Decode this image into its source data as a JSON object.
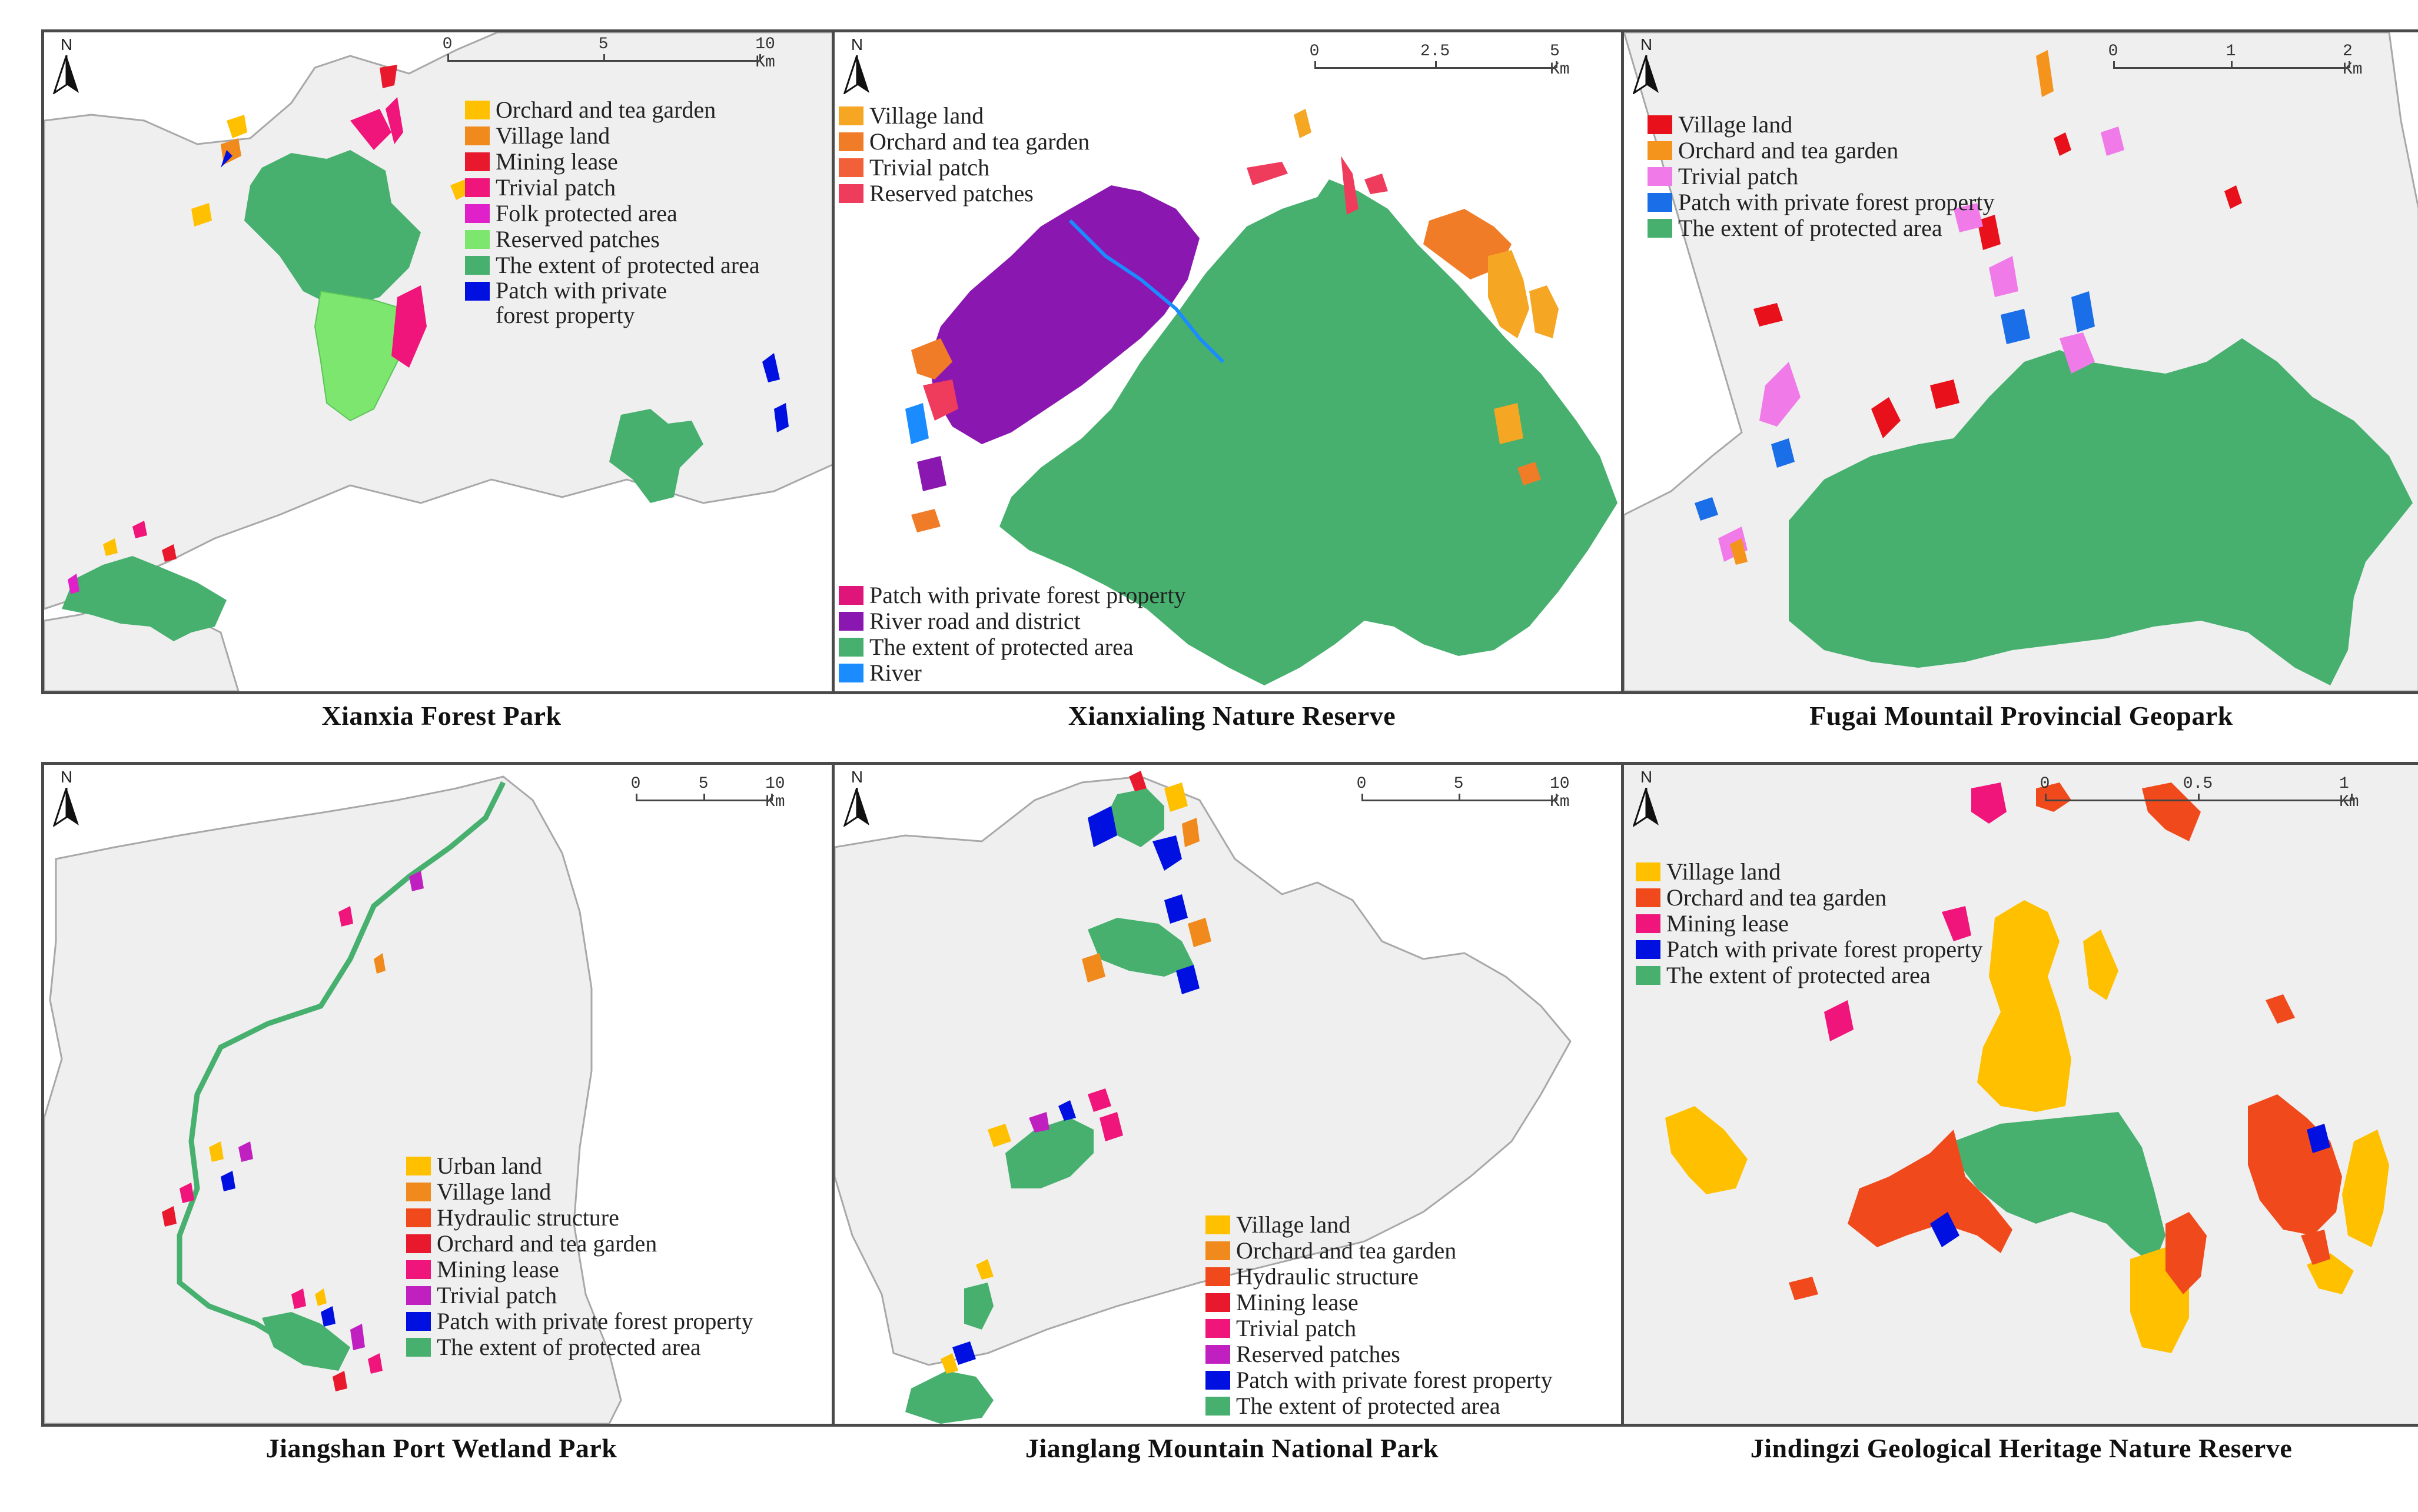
{
  "colors": {
    "background_land": "#efefef",
    "protected_area": "#47b06f",
    "reserved_patches_light": "#7de66e",
    "boundary": "#9a9a9a"
  },
  "north_label": "N",
  "panels": [
    {
      "caption": "Xianxia Forest Park",
      "scale": {
        "labels": [
          "0",
          "5",
          "10 Km"
        ]
      },
      "legend": [
        {
          "label": "Orchard and tea garden",
          "color": "#ffc000"
        },
        {
          "label": "Village land",
          "color": "#f08a1c"
        },
        {
          "label": "Mining lease",
          "color": "#e8192c"
        },
        {
          "label": "Trivial patch",
          "color": "#f0157a"
        },
        {
          "label": "Folk protected area",
          "color": "#e020c8"
        },
        {
          "label": "Reserved patches",
          "color": "#7de66e"
        },
        {
          "label": "The extent of protected area",
          "color": "#47b06f"
        },
        {
          "label": "Patch with private forest property",
          "color": "#0010e0"
        }
      ]
    },
    {
      "caption": "Xianxialing Nature Reserve",
      "scale": {
        "labels": [
          "0",
          "2.5",
          "5 Km"
        ]
      },
      "legend": [
        {
          "label": "Village land",
          "color": "#f5a623"
        },
        {
          "label": "Orchard and tea garden",
          "color": "#f07c28"
        },
        {
          "label": "Trivial patch",
          "color": "#f2603a"
        },
        {
          "label": "Reserved patches",
          "color": "#f03c5c"
        }
      ],
      "legend2": [
        {
          "label": "Patch with private forest property",
          "color": "#e0157a"
        },
        {
          "label": "River road and district",
          "color": "#8a18b0"
        },
        {
          "label": "The extent of protected area",
          "color": "#47b06f"
        },
        {
          "label": "River",
          "color": "#1a8cff"
        }
      ]
    },
    {
      "caption": "Fugai Mountail Provincial Geopark",
      "scale": {
        "labels": [
          "0",
          "1",
          "2 Km"
        ]
      },
      "legend": [
        {
          "label": "Village land",
          "color": "#e8101a"
        },
        {
          "label": "Orchard and tea garden",
          "color": "#f5941c"
        },
        {
          "label": "Trivial patch",
          "color": "#f07ae8"
        },
        {
          "label": "Patch with private forest property",
          "color": "#1a6ee8"
        },
        {
          "label": "The extent of protected area",
          "color": "#47b06f"
        }
      ]
    },
    {
      "caption": "Jiangshan Port Wetland Park",
      "scale": {
        "labels": [
          "0",
          "5",
          "10 Km"
        ]
      },
      "legend": [
        {
          "label": "Urban land",
          "color": "#ffc000"
        },
        {
          "label": "Village land",
          "color": "#f08a1c"
        },
        {
          "label": "Hydraulic structure",
          "color": "#f04a1c"
        },
        {
          "label": "Orchard and tea garden",
          "color": "#e8192c"
        },
        {
          "label": "Mining lease",
          "color": "#f0157a"
        },
        {
          "label": "Trivial patch",
          "color": "#c020c0"
        },
        {
          "label": "Patch with private forest property",
          "color": "#0010e0"
        },
        {
          "label": "The extent of protected area",
          "color": "#47b06f"
        }
      ]
    },
    {
      "caption": "Jianglang Mountain National Park",
      "scale": {
        "labels": [
          "0",
          "5",
          "10 Km"
        ]
      },
      "legend": [
        {
          "label": "Village land",
          "color": "#ffc000"
        },
        {
          "label": "Orchard and tea garden",
          "color": "#f08a1c"
        },
        {
          "label": "Hydraulic structure",
          "color": "#f04a1c"
        },
        {
          "label": "Mining lease",
          "color": "#e8192c"
        },
        {
          "label": "Trivial patch",
          "color": "#f0157a"
        },
        {
          "label": "Reserved patches",
          "color": "#c020c0"
        },
        {
          "label": "Patch with private forest property",
          "color": "#0010e0"
        },
        {
          "label": "The extent of protected area",
          "color": "#47b06f"
        }
      ]
    },
    {
      "caption": "Jindingzi Geological Heritage Nature Reserve",
      "scale": {
        "labels": [
          "0",
          "0.5",
          "1 Km"
        ]
      },
      "legend": [
        {
          "label": "Village land",
          "color": "#ffc000"
        },
        {
          "label": "Orchard and tea garden",
          "color": "#f04a1c"
        },
        {
          "label": "Mining lease",
          "color": "#f0157a"
        },
        {
          "label": "Patch with private forest property",
          "color": "#0010e0"
        },
        {
          "label": "The extent of protected area",
          "color": "#47b06f"
        }
      ]
    }
  ]
}
